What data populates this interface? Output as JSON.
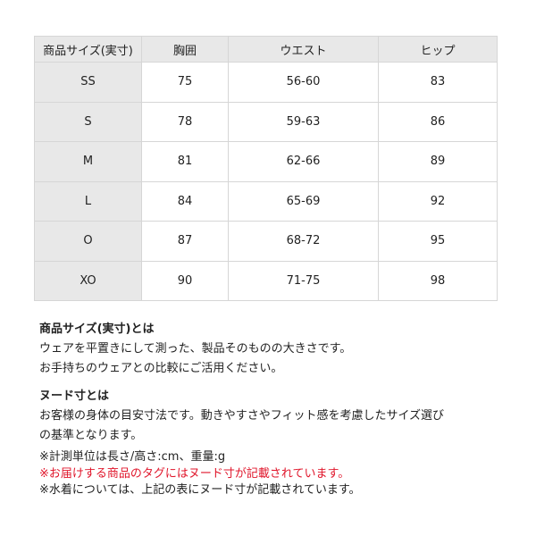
{
  "table": {
    "headers": [
      "商品サイズ(実寸)",
      "胸囲",
      "ウエスト",
      "ヒップ"
    ],
    "rows": [
      [
        "SS",
        "75",
        "56-60",
        "83"
      ],
      [
        "S",
        "78",
        "59-63",
        "86"
      ],
      [
        "M",
        "81",
        "62-66",
        "89"
      ],
      [
        "L",
        "84",
        "65-69",
        "92"
      ],
      [
        "O",
        "87",
        "68-72",
        "95"
      ],
      [
        "XO",
        "90",
        "71-75",
        "98"
      ]
    ]
  },
  "notes": {
    "product_size_heading": "商品サイズ(実寸)とは",
    "product_size_lines": [
      "ウェアを平置きにして測った、製品そのものの大きさです。",
      "お手持ちのウェアとの比較にご活用ください。"
    ],
    "nude_heading": "ヌード寸とは",
    "nude_lines": [
      "お客様の身体の目安寸法です。動きやすさやフィット感を考慮したサイズ選び",
      "の基準となります。"
    ],
    "unit_note": "※計測単位は長さ/高さ:cm、重量:g",
    "tag_note": "※お届けする商品のタグにはヌード寸が記載されています。",
    "swim_note": "※水着については、上記の表にヌード寸が記載されています。",
    "accent_color": "#e0162b"
  }
}
